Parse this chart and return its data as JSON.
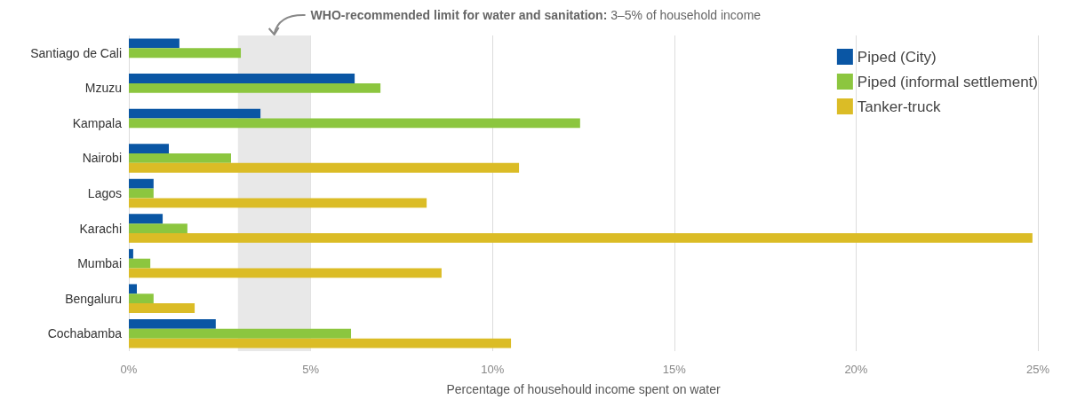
{
  "chart_data": {
    "type": "bar",
    "orientation": "horizontal",
    "categories": [
      "Santiago de Cali",
      "Mzuzu",
      "Kampala",
      "Nairobi",
      "Lagos",
      "Karachi",
      "Mumbai",
      "Bengaluru",
      "Cochabamba"
    ],
    "series": [
      {
        "name": "Piped (City)",
        "color": "#0a56a4",
        "values": [
          1.39,
          6.21,
          3.62,
          1.1,
          0.68,
          0.93,
          0.12,
          0.22,
          2.39
        ]
      },
      {
        "name": "Piped (informal settlement)",
        "color": "#8cc63f",
        "values": [
          3.08,
          6.92,
          12.41,
          2.81,
          0.68,
          1.61,
          0.59,
          0.68,
          6.11
        ]
      },
      {
        "name": "Tanker-truck",
        "color": "#dbbc26",
        "values": [
          null,
          null,
          null,
          10.73,
          8.19,
          24.85,
          8.6,
          1.81,
          10.51
        ]
      }
    ],
    "xlim": [
      0,
      25
    ],
    "xticks": [
      {
        "value": 0,
        "label": "0%"
      },
      {
        "value": 5,
        "label": "5%"
      },
      {
        "value": 10,
        "label": "10%"
      },
      {
        "value": 15,
        "label": "15%"
      },
      {
        "value": 20,
        "label": "20%"
      },
      {
        "value": 25,
        "label": "25%"
      }
    ],
    "xlabel": "Percentage of househould income spent on water",
    "bands": [
      {
        "axis": "x",
        "from": 3,
        "to": 5,
        "label": "WHO-recommended limit for water and sanitation: 3–5% of household income",
        "color": "#e8e8e8"
      }
    ],
    "grid": "x",
    "legend": "top right"
  }
}
